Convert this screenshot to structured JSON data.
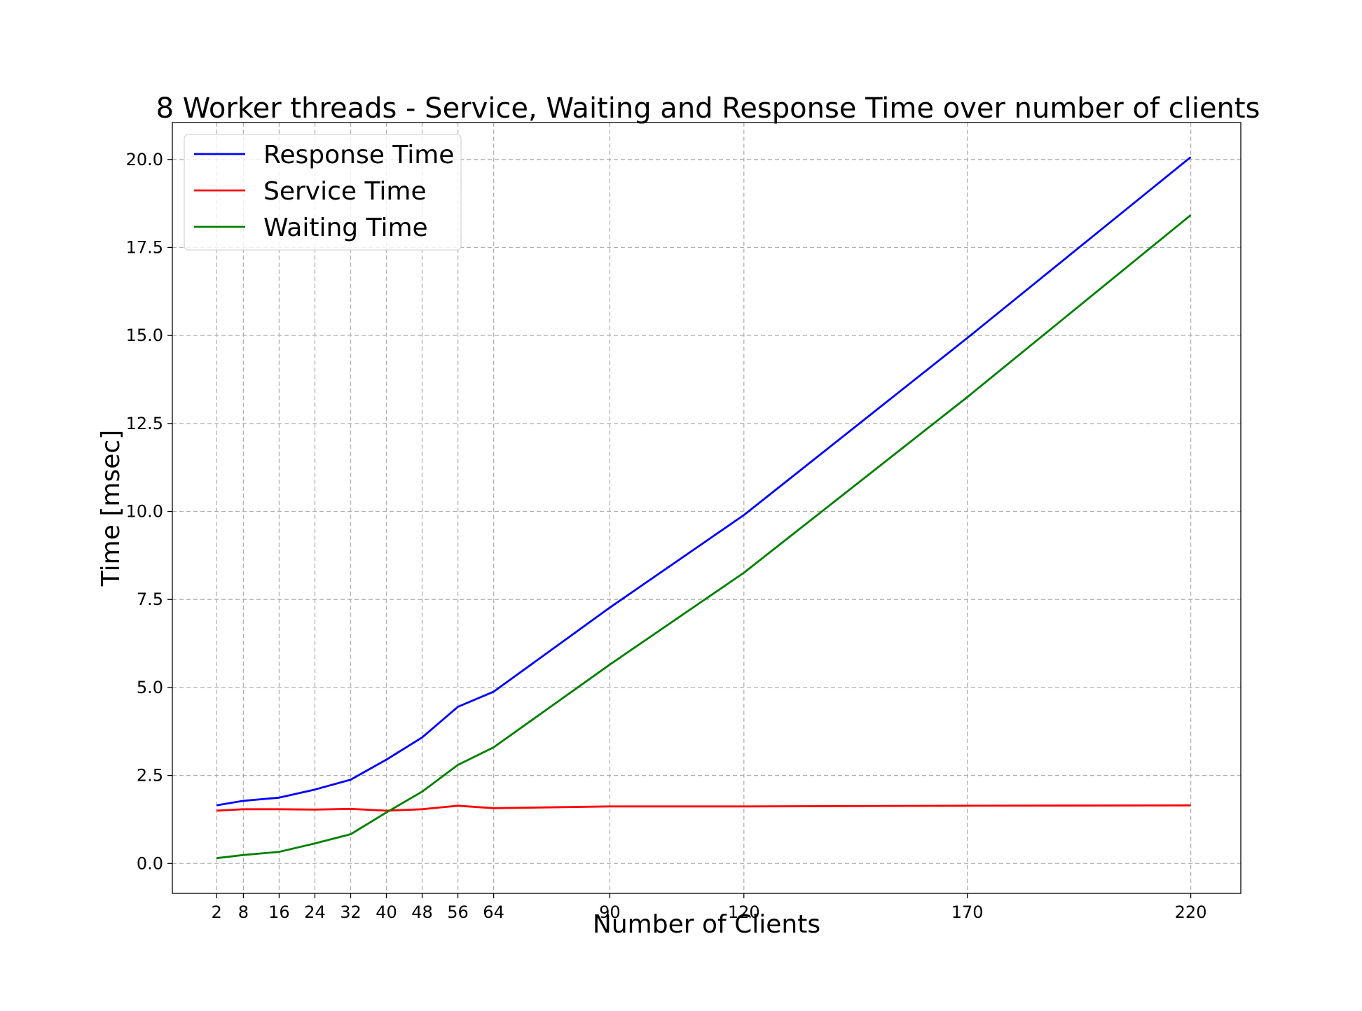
{
  "chart_data": {
    "type": "line",
    "title": "8 Worker threads - Service, Waiting and Response Time over number of clients",
    "xlabel": "Number of Clients",
    "ylabel": "Time [msec]",
    "x": [
      2,
      8,
      16,
      24,
      32,
      40,
      48,
      56,
      64,
      90,
      120,
      170,
      220
    ],
    "xticks": [
      2,
      8,
      16,
      24,
      32,
      40,
      48,
      56,
      64,
      90,
      120,
      170,
      220
    ],
    "xlim": [
      -7.9,
      231.2
    ],
    "yticks": [
      "0.0",
      "2.5",
      "5.0",
      "7.5",
      "10.0",
      "12.5",
      "15.0",
      "17.5",
      "20.0"
    ],
    "ylim": [
      -0.85,
      21.05
    ],
    "grid": true,
    "legend_position": "upper-left",
    "series": [
      {
        "name": "Response Time",
        "color": "#0000ff",
        "values": [
          1.65,
          1.78,
          1.87,
          2.1,
          2.38,
          2.95,
          3.58,
          4.45,
          4.88,
          7.27,
          9.9,
          14.93,
          20.07
        ]
      },
      {
        "name": "Service Time",
        "color": "#ff0000",
        "values": [
          1.5,
          1.54,
          1.54,
          1.53,
          1.55,
          1.5,
          1.54,
          1.64,
          1.57,
          1.62,
          1.62,
          1.64,
          1.65
        ]
      },
      {
        "name": "Waiting Time",
        "color": "#008000",
        "values": [
          0.15,
          0.24,
          0.33,
          0.57,
          0.83,
          1.45,
          2.04,
          2.8,
          3.3,
          5.65,
          8.26,
          13.25,
          18.42
        ]
      }
    ]
  }
}
